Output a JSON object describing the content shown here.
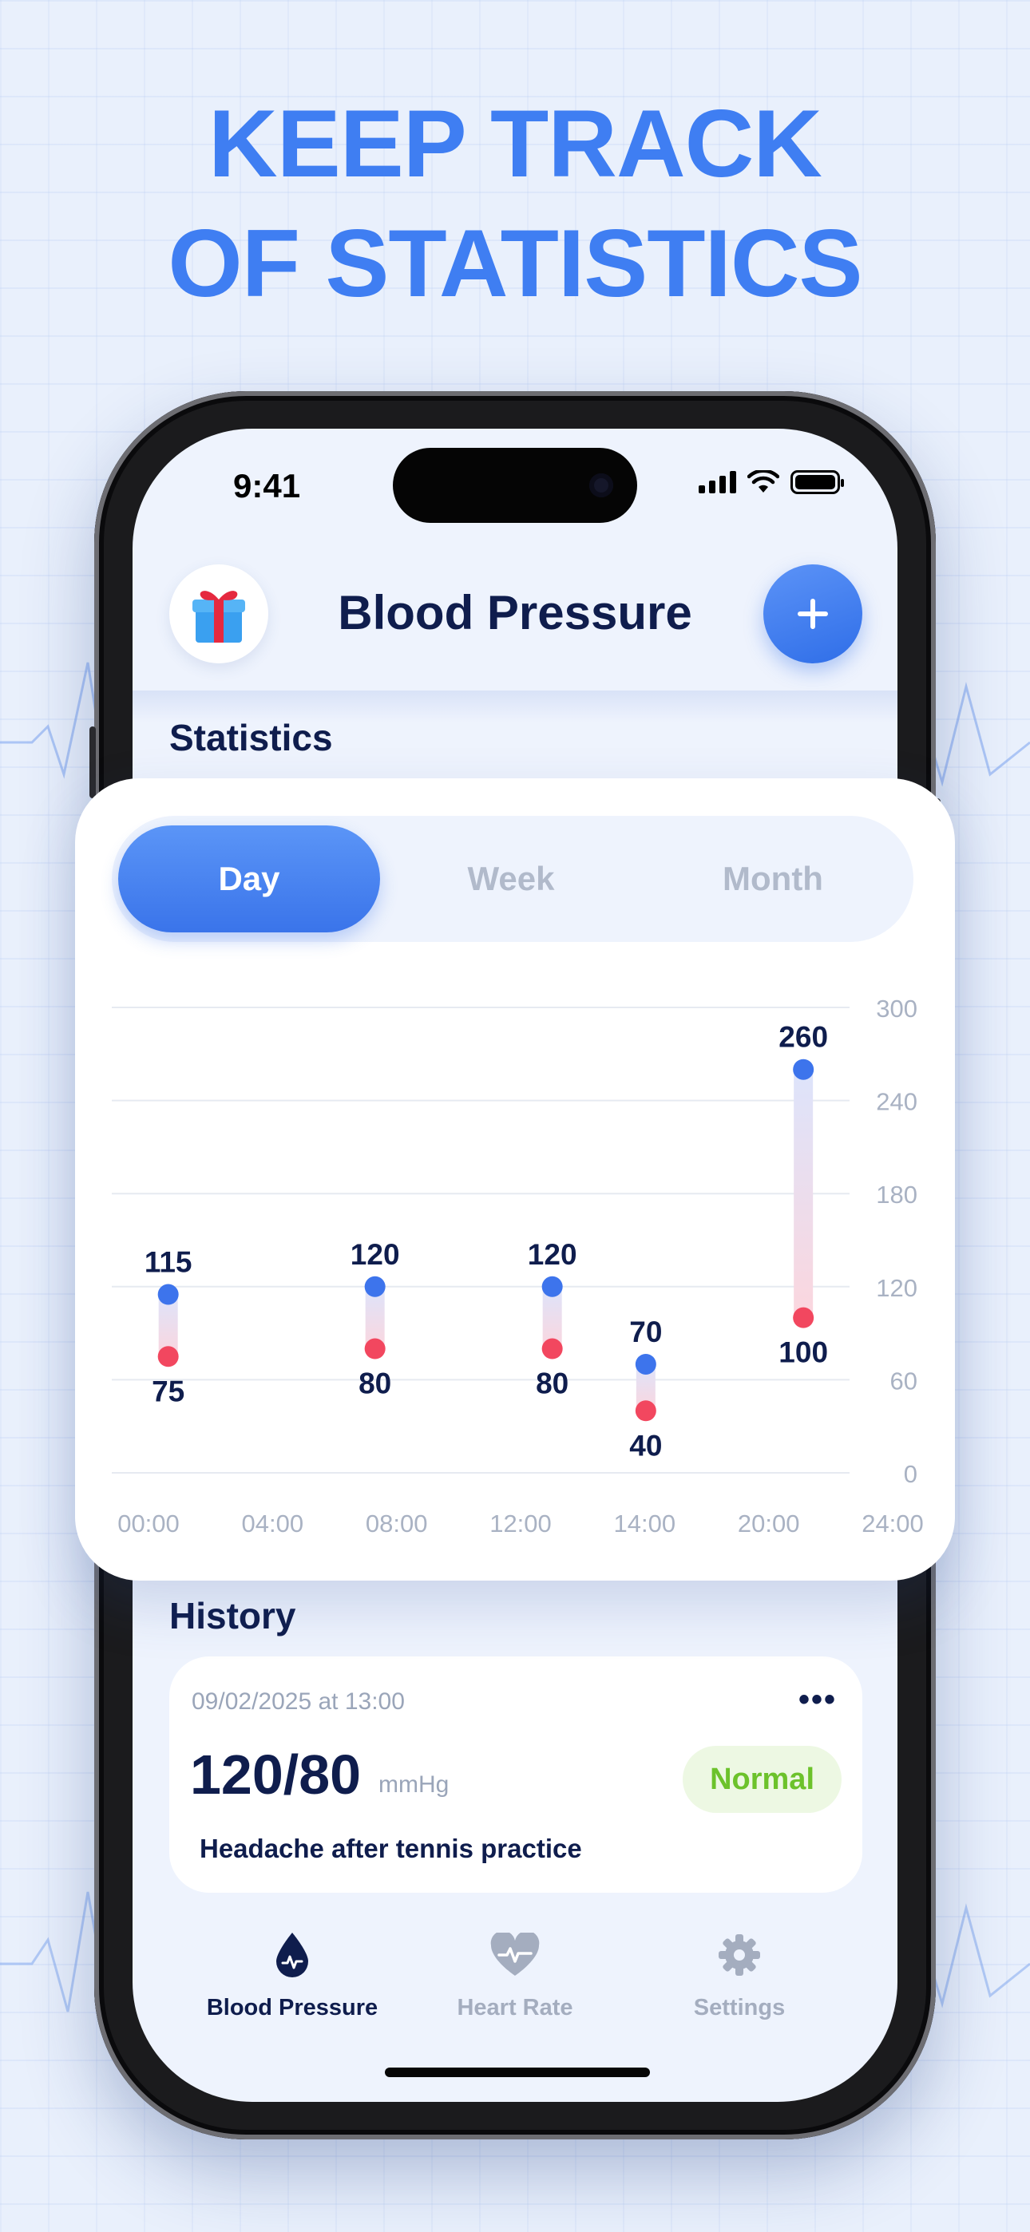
{
  "headline": {
    "line1": "KEEP TRACK",
    "line2": "OF STATISTICS"
  },
  "status_bar": {
    "time": "9:41"
  },
  "header": {
    "title": "Blood Pressure",
    "left_icon": "gift-icon",
    "right_icon": "plus-icon"
  },
  "statistics": {
    "title": "Statistics",
    "tabs": [
      {
        "label": "Day",
        "active": true
      },
      {
        "label": "Week",
        "active": false
      },
      {
        "label": "Month",
        "active": false
      }
    ]
  },
  "chart_data": {
    "type": "range-bar",
    "categories": [
      "00:00",
      "04:00",
      "08:00",
      "12:00",
      "14:00",
      "20:00",
      "24:00"
    ],
    "y_ticks": [
      "300",
      "240",
      "180",
      "120",
      "60",
      "0"
    ],
    "ylim": [
      0,
      300
    ],
    "points": [
      {
        "x": "00:40",
        "systolic": 115,
        "diastolic": 75,
        "systolic_label": "115",
        "diastolic_label": "75"
      },
      {
        "x": "07:40",
        "systolic": 120,
        "diastolic": 80,
        "systolic_label": "120",
        "diastolic_label": "80"
      },
      {
        "x": "13:40",
        "systolic": 120,
        "diastolic": 80,
        "systolic_label": "120",
        "diastolic_label": "80"
      },
      {
        "x": "16:50",
        "systolic": 70,
        "diastolic": 40,
        "systolic_label": "70",
        "diastolic_label": "40"
      },
      {
        "x": "22:10",
        "systolic": 260,
        "diastolic": 100,
        "systolic_label": "260",
        "diastolic_label": "100"
      }
    ],
    "colors": {
      "systolic": "#3d74ec",
      "diastolic": "#f2475f",
      "grid": "#e6eaf1",
      "tick": "#a9b2c3",
      "value": "#0f1d4d"
    }
  },
  "history": {
    "title": "History",
    "entry": {
      "date": "09/02/2025 at 13:00",
      "more": "•••",
      "value": "120/80",
      "unit": "mmHg",
      "status": "Normal",
      "note": "Headache after tennis practice"
    }
  },
  "tab_bar": [
    {
      "label": "Blood Pressure",
      "icon": "blood-drop-icon",
      "active": true
    },
    {
      "label": "Heart Rate",
      "icon": "heart-pulse-icon",
      "active": false
    },
    {
      "label": "Settings",
      "icon": "gear-icon",
      "active": false
    }
  ]
}
